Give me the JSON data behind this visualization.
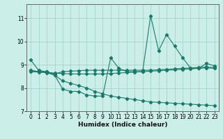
{
  "xlabel": "Humidex (Indice chaleur)",
  "background_color": "#cceee8",
  "line_color": "#1a7a6a",
  "x": [
    0,
    1,
    2,
    3,
    4,
    5,
    6,
    7,
    8,
    9,
    10,
    11,
    12,
    13,
    14,
    15,
    16,
    17,
    18,
    19,
    20,
    21,
    22,
    23
  ],
  "line1": [
    9.2,
    8.75,
    8.7,
    8.55,
    7.95,
    7.85,
    7.85,
    7.7,
    7.65,
    7.65,
    9.3,
    8.85,
    8.7,
    8.7,
    8.7,
    11.1,
    9.6,
    10.3,
    9.8,
    9.3,
    8.85,
    8.85,
    9.05,
    8.95
  ],
  "line2": [
    8.75,
    8.7,
    8.7,
    8.6,
    8.7,
    8.72,
    8.74,
    8.76,
    8.76,
    8.76,
    8.76,
    8.76,
    8.76,
    8.76,
    8.76,
    8.76,
    8.78,
    8.8,
    8.82,
    8.84,
    8.86,
    8.88,
    8.9,
    8.88
  ],
  "line3": [
    8.7,
    8.68,
    8.66,
    8.64,
    8.62,
    8.6,
    8.6,
    8.6,
    8.6,
    8.6,
    8.62,
    8.64,
    8.66,
    8.68,
    8.7,
    8.72,
    8.74,
    8.76,
    8.78,
    8.8,
    8.82,
    8.84,
    8.86,
    8.84
  ],
  "line4": [
    8.75,
    8.7,
    8.65,
    8.55,
    8.3,
    8.2,
    8.1,
    8.0,
    7.85,
    7.75,
    7.65,
    7.6,
    7.55,
    7.5,
    7.45,
    7.4,
    7.38,
    7.36,
    7.34,
    7.32,
    7.3,
    7.28,
    7.26,
    7.24
  ],
  "ylim": [
    7.0,
    11.6
  ],
  "xlim": [
    -0.5,
    23.5
  ],
  "yticks": [
    7,
    8,
    9,
    10,
    11
  ],
  "xticks": [
    0,
    1,
    2,
    3,
    4,
    5,
    6,
    7,
    8,
    9,
    10,
    11,
    12,
    13,
    14,
    15,
    16,
    17,
    18,
    19,
    20,
    21,
    22,
    23
  ]
}
